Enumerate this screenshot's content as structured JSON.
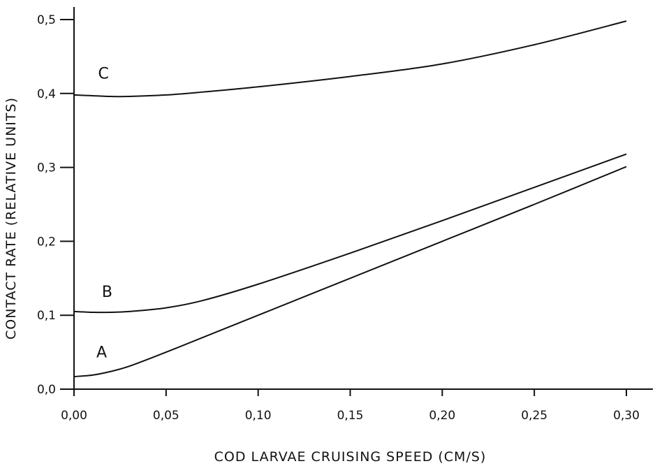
{
  "chart_data": {
    "type": "line",
    "title": "",
    "xlabel": "COD LARVAE CRUISING SPEED  (CM/S)",
    "ylabel": "CONTACT RATE  (RELATIVE UNITS)",
    "xlim": [
      0.0,
      0.3
    ],
    "ylim": [
      0.0,
      0.5
    ],
    "grid": false,
    "legend": "none",
    "x_ticks": [
      0.0,
      0.05,
      0.1,
      0.15,
      0.2,
      0.25,
      0.3
    ],
    "x_tick_labels": [
      "0,00",
      "0,05",
      "0,10",
      "0,15",
      "0,20",
      "0,25",
      "0,30"
    ],
    "y_ticks": [
      0.0,
      0.1,
      0.2,
      0.3,
      0.4,
      0.5
    ],
    "y_tick_labels": [
      "0,0",
      "0,1",
      "0,2",
      "0,3",
      "0,4",
      "0,5"
    ],
    "x": [
      0.0,
      0.01,
      0.02,
      0.03,
      0.05,
      0.07,
      0.1,
      0.15,
      0.2,
      0.25,
      0.3
    ],
    "series": [
      {
        "name": "A",
        "label_at": [
          0.015,
          0.043
        ],
        "values": [
          0.017,
          0.019,
          0.024,
          0.031,
          0.05,
          0.07,
          0.1,
          0.15,
          0.2,
          0.25,
          0.301
        ]
      },
      {
        "name": "B",
        "label_at": [
          0.018,
          0.125
        ],
        "values": [
          0.105,
          0.104,
          0.104,
          0.105,
          0.11,
          0.12,
          0.142,
          0.184,
          0.228,
          0.273,
          0.318
        ]
      },
      {
        "name": "C",
        "label_at": [
          0.016,
          0.42
        ],
        "values": [
          0.398,
          0.397,
          0.396,
          0.396,
          0.398,
          0.402,
          0.409,
          0.423,
          0.44,
          0.466,
          0.498
        ]
      }
    ]
  }
}
